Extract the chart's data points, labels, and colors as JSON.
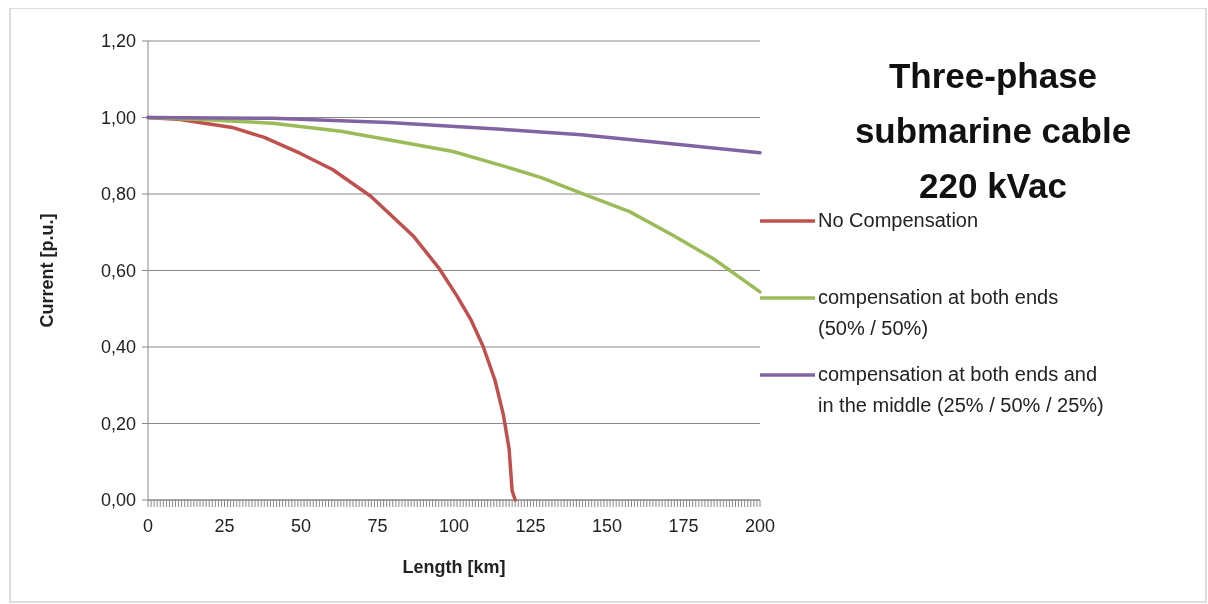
{
  "chart_data": {
    "type": "line",
    "title": "Three-phase\nsubmarine cable\n220 kVac",
    "xlabel": "Length [km]",
    "ylabel": "Current [p.u.]",
    "xlim": [
      0,
      200
    ],
    "ylim": [
      0,
      1.2
    ],
    "xticks": [
      0,
      {
        "value": 1,
        "label": null
      },
      {
        "value": 2,
        "label": null
      },
      {
        "value": 3,
        "label": null
      },
      {
        "value": 4,
        "label": null
      },
      {
        "value": 5,
        "label": null
      },
      {
        "value": 6,
        "label": null
      },
      {
        "value": 7,
        "label": null
      },
      {
        "value": 8,
        "label": null
      },
      {
        "value": 9,
        "label": null
      },
      {
        "value": 10,
        "label": null
      },
      {
        "value": 11,
        "label": null
      },
      {
        "value": 12,
        "label": null
      },
      {
        "value": 13,
        "label": null
      },
      {
        "value": 14,
        "label": null
      },
      {
        "value": 15,
        "label": null
      },
      {
        "value": 16,
        "label": null
      },
      {
        "value": 17,
        "label": null
      },
      {
        "value": 18,
        "label": null
      },
      {
        "value": 19,
        "label": null
      },
      {
        "value": 20,
        "label": null
      },
      {
        "value": 21,
        "label": null
      },
      {
        "value": 22,
        "label": null
      },
      {
        "value": 23,
        "label": null
      },
      {
        "value": 24,
        "label": null
      },
      25,
      {
        "value": 26,
        "label": null
      },
      {
        "value": 27,
        "label": null
      },
      {
        "value": 28,
        "label": null
      },
      {
        "value": 29,
        "label": null
      },
      {
        "value": 30,
        "label": null
      },
      {
        "value": 31,
        "label": null
      },
      {
        "value": 32,
        "label": null
      },
      {
        "value": 33,
        "label": null
      },
      {
        "value": 34,
        "label": null
      },
      {
        "value": 35,
        "label": null
      },
      {
        "value": 36,
        "label": null
      },
      {
        "value": 37,
        "label": null
      },
      {
        "value": 38,
        "label": null
      },
      {
        "value": 39,
        "label": null
      },
      {
        "value": 40,
        "label": null
      },
      {
        "value": 41,
        "label": null
      },
      {
        "value": 42,
        "label": null
      },
      {
        "value": 43,
        "label": null
      },
      {
        "value": 44,
        "label": null
      },
      {
        "value": 45,
        "label": null
      },
      {
        "value": 46,
        "label": null
      },
      {
        "value": 47,
        "label": null
      },
      {
        "value": 48,
        "label": null
      },
      {
        "value": 49,
        "label": null
      },
      50,
      {
        "value": 51,
        "label": null
      },
      {
        "value": 52,
        "label": null
      },
      {
        "value": 53,
        "label": null
      },
      {
        "value": 54,
        "label": null
      },
      {
        "value": 55,
        "label": null
      },
      {
        "value": 56,
        "label": null
      },
      {
        "value": 57,
        "label": null
      },
      {
        "value": 58,
        "label": null
      },
      {
        "value": 59,
        "label": null
      },
      {
        "value": 60,
        "label": null
      },
      {
        "value": 61,
        "label": null
      },
      {
        "value": 62,
        "label": null
      },
      {
        "value": 63,
        "label": null
      },
      {
        "value": 64,
        "label": null
      },
      {
        "value": 65,
        "label": null
      },
      {
        "value": 66,
        "label": null
      },
      {
        "value": 67,
        "label": null
      },
      {
        "value": 68,
        "label": null
      },
      {
        "value": 69,
        "label": null
      },
      {
        "value": 70,
        "label": null
      },
      {
        "value": 71,
        "label": null
      },
      {
        "value": 72,
        "label": null
      },
      {
        "value": 73,
        "label": null
      },
      {
        "value": 74,
        "label": null
      },
      75,
      {
        "value": 76,
        "label": null
      },
      {
        "value": 77,
        "label": null
      },
      {
        "value": 78,
        "label": null
      },
      {
        "value": 79,
        "label": null
      },
      {
        "value": 80,
        "label": null
      },
      {
        "value": 81,
        "label": null
      },
      {
        "value": 82,
        "label": null
      },
      {
        "value": 83,
        "label": null
      },
      {
        "value": 84,
        "label": null
      },
      {
        "value": 85,
        "label": null
      },
      {
        "value": 86,
        "label": null
      },
      {
        "value": 87,
        "label": null
      },
      {
        "value": 88,
        "label": null
      },
      {
        "value": 89,
        "label": null
      },
      {
        "value": 90,
        "label": null
      },
      {
        "value": 91,
        "label": null
      },
      {
        "value": 92,
        "label": null
      },
      {
        "value": 93,
        "label": null
      },
      {
        "value": 94,
        "label": null
      },
      {
        "value": 95,
        "label": null
      },
      {
        "value": 96,
        "label": null
      },
      {
        "value": 97,
        "label": null
      },
      {
        "value": 98,
        "label": null
      },
      {
        "value": 99,
        "label": null
      },
      100,
      {
        "value": 101,
        "label": null
      },
      {
        "value": 102,
        "label": null
      },
      {
        "value": 103,
        "label": null
      },
      {
        "value": 104,
        "label": null
      },
      {
        "value": 105,
        "label": null
      },
      {
        "value": 106,
        "label": null
      },
      {
        "value": 107,
        "label": null
      },
      {
        "value": 108,
        "label": null
      },
      {
        "value": 109,
        "label": null
      },
      {
        "value": 110,
        "label": null
      },
      {
        "value": 111,
        "label": null
      },
      {
        "value": 112,
        "label": null
      },
      {
        "value": 113,
        "label": null
      },
      {
        "value": 114,
        "label": null
      },
      {
        "value": 115,
        "label": null
      },
      {
        "value": 116,
        "label": null
      },
      {
        "value": 117,
        "label": null
      },
      {
        "value": 118,
        "label": null
      },
      {
        "value": 119,
        "label": null
      },
      {
        "value": 120,
        "label": null
      },
      {
        "value": 121,
        "label": null
      },
      {
        "value": 122,
        "label": null
      },
      {
        "value": 123,
        "label": null
      },
      {
        "value": 124,
        "label": null
      },
      125,
      {
        "value": 126,
        "label": null
      },
      {
        "value": 127,
        "label": null
      },
      {
        "value": 128,
        "label": null
      },
      {
        "value": 129,
        "label": null
      },
      {
        "value": 130,
        "label": null
      },
      {
        "value": 131,
        "label": null
      },
      {
        "value": 132,
        "label": null
      },
      {
        "value": 133,
        "label": null
      },
      {
        "value": 134,
        "label": null
      },
      {
        "value": 135,
        "label": null
      },
      {
        "value": 136,
        "label": null
      },
      {
        "value": 137,
        "label": null
      },
      {
        "value": 138,
        "label": null
      },
      {
        "value": 139,
        "label": null
      },
      {
        "value": 140,
        "label": null
      },
      {
        "value": 141,
        "label": null
      },
      {
        "value": 142,
        "label": null
      },
      {
        "value": 143,
        "label": null
      },
      {
        "value": 144,
        "label": null
      },
      {
        "value": 145,
        "label": null
      },
      {
        "value": 146,
        "label": null
      },
      {
        "value": 147,
        "label": null
      },
      {
        "value": 148,
        "label": null
      },
      {
        "value": 149,
        "label": null
      },
      150,
      {
        "value": 151,
        "label": null
      },
      {
        "value": 152,
        "label": null
      },
      {
        "value": 153,
        "label": null
      },
      {
        "value": 154,
        "label": null
      },
      {
        "value": 155,
        "label": null
      },
      {
        "value": 156,
        "label": null
      },
      {
        "value": 157,
        "label": null
      },
      {
        "value": 158,
        "label": null
      },
      {
        "value": 159,
        "label": null
      },
      {
        "value": 160,
        "label": null
      },
      {
        "value": 161,
        "label": null
      },
      {
        "value": 162,
        "label": null
      },
      {
        "value": 163,
        "label": null
      },
      {
        "value": 164,
        "label": null
      },
      {
        "value": 165,
        "label": null
      },
      {
        "value": 166,
        "label": null
      },
      {
        "value": 167,
        "label": null
      },
      {
        "value": 168,
        "label": null
      },
      {
        "value": 169,
        "label": null
      },
      {
        "value": 170,
        "label": null
      },
      {
        "value": 171,
        "label": null
      },
      {
        "value": 172,
        "label": null
      },
      {
        "value": 173,
        "label": null
      },
      {
        "value": 174,
        "label": null
      },
      175,
      {
        "value": 176,
        "label": null
      },
      {
        "value": 177,
        "label": null
      },
      {
        "value": 178,
        "label": null
      },
      {
        "value": 179,
        "label": null
      },
      {
        "value": 180,
        "label": null
      },
      {
        "value": 181,
        "label": null
      },
      {
        "value": 182,
        "label": null
      },
      {
        "value": 183,
        "label": null
      },
      {
        "value": 184,
        "label": null
      },
      {
        "value": 185,
        "label": null
      },
      {
        "value": 186,
        "label": null
      },
      {
        "value": 187,
        "label": null
      },
      {
        "value": 188,
        "label": null
      },
      {
        "value": 189,
        "label": null
      },
      {
        "value": 190,
        "label": null
      },
      {
        "value": 191,
        "label": null
      },
      {
        "value": 192,
        "label": null
      },
      {
        "value": 193,
        "label": null
      },
      {
        "value": 194,
        "label": null
      },
      {
        "value": 195,
        "label": null
      },
      {
        "value": 196,
        "label": null
      },
      {
        "value": 197,
        "label": null
      },
      {
        "value": 198,
        "label": null
      },
      {
        "value": 199,
        "label": null
      },
      200
    ],
    "yticks": [
      {
        "value": 0,
        "label": "0,00"
      },
      {
        "value": 0.2,
        "label": "0,20"
      },
      {
        "value": 0.4,
        "label": "0,40"
      },
      {
        "value": 0.6,
        "label": "0,60"
      },
      {
        "value": 0.8,
        "label": "0,80"
      },
      {
        "value": 1,
        "label": "1,00"
      },
      {
        "value": 1.2,
        "label": "1,20"
      }
    ],
    "grid": "y",
    "legend": "right",
    "marker": "none",
    "line_style": "solid",
    "series": [
      {
        "name": "No Compensation",
        "color": "#c0504d",
        "x": [
          0,
          10.5,
          27.5,
          38,
          49.8,
          60.3,
          72.8,
          86.6,
          95,
          101,
          105.6,
          109.5,
          113.4,
          116.1,
          118,
          119,
          120
        ],
        "values": [
          1,
          0.995,
          0.974,
          0.948,
          0.906,
          0.864,
          0.794,
          0.691,
          0.607,
          0.533,
          0.47,
          0.402,
          0.313,
          0.224,
          0.134,
          0.024,
          0
        ]
      },
      {
        "name": "compensation at both ends (50% / 50%)",
        "color": "#9bbb59",
        "x": [
          0,
          17,
          40.7,
          63,
          81.3,
          99.7,
          115.4,
          128.5,
          143,
          157.4,
          171.8,
          184.9,
          200
        ],
        "values": [
          1,
          0.995,
          0.985,
          0.964,
          0.938,
          0.911,
          0.875,
          0.843,
          0.798,
          0.754,
          0.691,
          0.63,
          0.544
        ]
      },
      {
        "name": "compensation at both ends and in the middle (25% / 50% / 25%)",
        "color": "#8064a2",
        "x": [
          0,
          40.7,
          78.7,
          115.4,
          141.6,
          167.9,
          200
        ],
        "values": [
          1,
          0.998,
          0.987,
          0.969,
          0.955,
          0.934,
          0.908
        ]
      }
    ]
  }
}
